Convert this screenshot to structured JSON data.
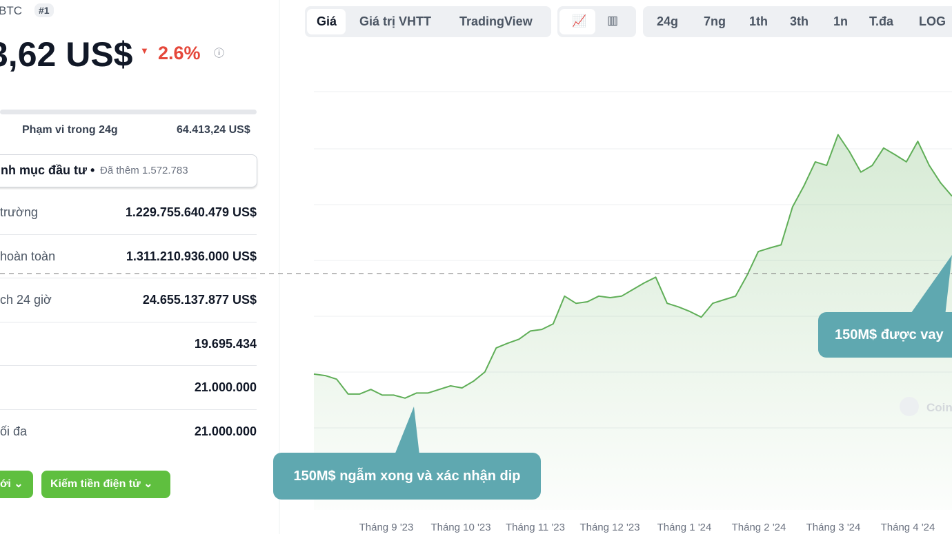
{
  "header": {
    "ticker": "BTC",
    "rank": "#1",
    "price": "3,62 US$",
    "change": "2.6%"
  },
  "range_24h": {
    "label": "Phạm vi trong 24g",
    "value": "64.413,24 US$"
  },
  "portfolio": {
    "label": "nh mục đầu tư •",
    "added": "Đã thêm 1.572.783"
  },
  "stats": [
    {
      "label": "trường",
      "value": "1.229.755.640.479 US$"
    },
    {
      "label": "hoàn toàn",
      "value": "1.311.210.936.000 US$"
    },
    {
      "label": "ch 24 giờ",
      "value": "24.655.137.877 US$"
    },
    {
      "value": "19.695.434"
    },
    {
      "value": "21.000.000"
    },
    {
      "label": "ối đa",
      "value": "21.000.000"
    }
  ],
  "buttons": [
    "ới",
    "Kiếm tiền điện tử"
  ],
  "tabs": [
    "Giá",
    "Giá trị VHTT",
    "TradingView"
  ],
  "ranges": [
    "24g",
    "7ng",
    "1th",
    "3th",
    "1n",
    "T.đa",
    "LOG"
  ],
  "price_chart": {
    "type": "line",
    "color": "#5fae57",
    "ylim": [
      0,
      82000
    ],
    "months": [
      "Tháng 9 '23",
      "Tháng 10 '23",
      "Tháng 11 '23",
      "Tháng 12 '23",
      "Tháng 1 '24",
      "Tháng 2 '24",
      "Tháng 3 '24",
      "Tháng 4 '24"
    ],
    "values": [
      26500,
      26200,
      25500,
      22600,
      22600,
      23500,
      22400,
      22400,
      21800,
      22800,
      22800,
      23500,
      24200,
      23800,
      25100,
      26900,
      31600,
      32500,
      33300,
      34900,
      35200,
      36300,
      41700,
      40300,
      40600,
      41700,
      41400,
      41700,
      43000,
      44300,
      45400,
      40300,
      39600,
      38700,
      37600,
      40300,
      41000,
      41700,
      45700,
      50400,
      51100,
      51700,
      59100,
      63200,
      67900,
      67200,
      73200,
      69900,
      65900,
      67200,
      70600,
      69300,
      67900,
      71900,
      67200,
      63800,
      61200
    ],
    "annotations": [
      "150M$ ngẫm xong và xác nhận dip",
      "150M$ được vay"
    ],
    "watermark": "Coin"
  }
}
